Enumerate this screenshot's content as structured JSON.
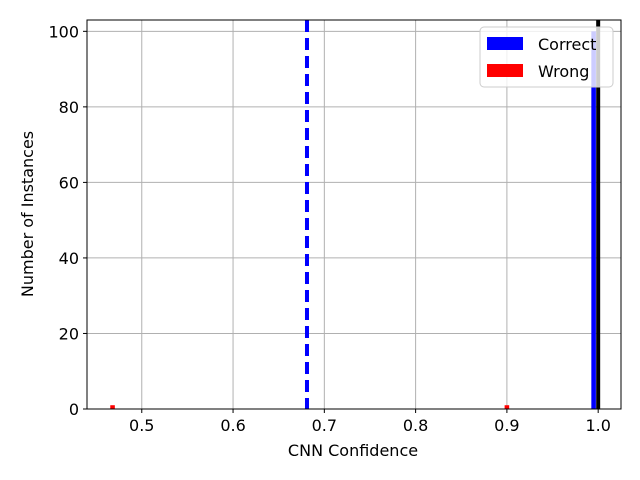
{
  "chart_data": {
    "type": "bar",
    "title": "",
    "xlabel": "CNN Confidence",
    "ylabel": "Number of Instances",
    "xlim": [
      0.44,
      1.025
    ],
    "ylim": [
      0,
      103
    ],
    "xticks": [
      0.5,
      0.6,
      0.7,
      0.8,
      0.9,
      1.0
    ],
    "xtick_labels": [
      "0.5",
      "0.6",
      "0.7",
      "0.8",
      "0.9",
      "1.0"
    ],
    "yticks": [
      0,
      20,
      40,
      60,
      80,
      100
    ],
    "ytick_labels": [
      "0",
      "20",
      "40",
      "60",
      "80",
      "100"
    ],
    "grid": true,
    "bin_width": 0.005,
    "series": [
      {
        "name": "Correct",
        "color": "#0000ff",
        "bins": [
          {
            "x": 0.995,
            "count": 100
          }
        ]
      },
      {
        "name": "Wrong",
        "color": "#ff0000",
        "bins": [
          {
            "x": 0.468,
            "count": 1
          },
          {
            "x": 0.9,
            "count": 1
          }
        ]
      }
    ],
    "reference_lines": [
      {
        "x": 0.681,
        "style": "dashed",
        "color": "#0000ff"
      },
      {
        "x": 1.0,
        "style": "solid",
        "color": "#000000"
      }
    ],
    "legend": {
      "position": "top-right",
      "entries": [
        {
          "label": "Correct",
          "color": "#0000ff"
        },
        {
          "label": "Wrong",
          "color": "#ff0000"
        }
      ]
    }
  }
}
